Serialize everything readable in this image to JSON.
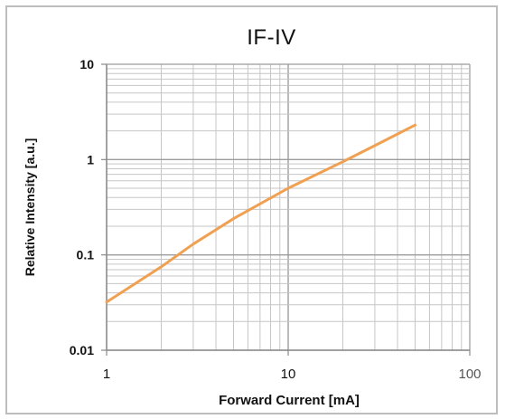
{
  "chart_data": {
    "type": "line",
    "title": "IF-IV",
    "xlabel": "Forward Current [mA]",
    "ylabel": "Relative Intensity [a.u.]",
    "x_scale": "log",
    "y_scale": "log",
    "xlim": [
      1,
      100
    ],
    "ylim": [
      0.01,
      10
    ],
    "x_ticks": [
      1,
      10,
      100
    ],
    "x_tick_labels": [
      "1",
      "10",
      "100"
    ],
    "y_ticks": [
      0.01,
      0.1,
      1,
      10
    ],
    "y_tick_labels": [
      "0.01",
      "0.1",
      "1",
      "10"
    ],
    "grid": true,
    "series": [
      {
        "color": "#f0a050",
        "x": [
          1,
          2,
          3,
          5,
          10,
          20,
          30,
          50
        ],
        "y": [
          0.032,
          0.075,
          0.13,
          0.24,
          0.5,
          0.95,
          1.4,
          2.3
        ]
      }
    ]
  }
}
